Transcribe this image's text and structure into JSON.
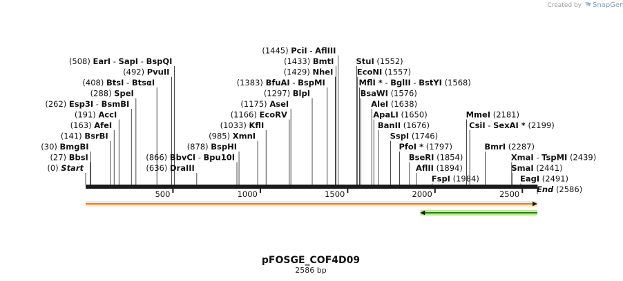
{
  "header": {
    "credit_prefix": "Created by",
    "brand": "SnapGene"
  },
  "plasmid": {
    "name": "pFOSGE_COF4D09",
    "length_label": "2586 bp",
    "length_bp": 2586
  },
  "ruler": {
    "ticks": [
      500,
      1000,
      1500,
      2000,
      2500
    ]
  },
  "features": [
    {
      "name": "feature-orange-forward",
      "start": 1,
      "end": 2586,
      "direction": "forward",
      "color": "#f0a030",
      "halo": "#fde7c8"
    },
    {
      "name": "feature-green-reverse",
      "start": 1916,
      "end": 2586,
      "direction": "reverse",
      "color": "#3a8a20",
      "halo": "#b8ee9a"
    }
  ],
  "sites": [
    {
      "pos": 0,
      "pos_text": "(0)",
      "names": [
        "Start"
      ],
      "side": "left",
      "row": 0,
      "endpoint": true
    },
    {
      "pos": 27,
      "pos_text": "(27)",
      "names": [
        "BbsI"
      ],
      "side": "left",
      "row": 1
    },
    {
      "pos": 30,
      "pos_text": "(30)",
      "names": [
        "BmgBI"
      ],
      "side": "left",
      "row": 2
    },
    {
      "pos": 141,
      "pos_text": "(141)",
      "names": [
        "BsrBI"
      ],
      "side": "left",
      "row": 3
    },
    {
      "pos": 163,
      "pos_text": "(163)",
      "names": [
        "AfeI"
      ],
      "side": "left",
      "row": 4
    },
    {
      "pos": 191,
      "pos_text": "(191)",
      "names": [
        "AccI"
      ],
      "side": "left",
      "row": 5
    },
    {
      "pos": 262,
      "pos_text": "(262)",
      "names": [
        "Esp3I",
        "BsmBI"
      ],
      "side": "left",
      "row": 6
    },
    {
      "pos": 288,
      "pos_text": "(288)",
      "names": [
        "SpeI"
      ],
      "side": "left",
      "row": 7
    },
    {
      "pos": 408,
      "pos_text": "(408)",
      "names": [
        "BtsI",
        "BtsαI"
      ],
      "side": "left",
      "row": 8
    },
    {
      "pos": 492,
      "pos_text": "(492)",
      "names": [
        "PvuII"
      ],
      "side": "left",
      "row": 9
    },
    {
      "pos": 508,
      "pos_text": "(508)",
      "names": [
        "EarI",
        "SapI",
        "BspQI"
      ],
      "side": "left",
      "row": 10
    },
    {
      "pos": 636,
      "pos_text": "(636)",
      "names": [
        "DraIII"
      ],
      "side": "left",
      "row": 0
    },
    {
      "pos": 866,
      "pos_text": "(866)",
      "names": [
        "BbvCI",
        "Bpu10I"
      ],
      "side": "left",
      "row": 1
    },
    {
      "pos": 878,
      "pos_text": "(878)",
      "names": [
        "BspHI"
      ],
      "side": "left",
      "row": 2
    },
    {
      "pos": 985,
      "pos_text": "(985)",
      "names": [
        "XmnI"
      ],
      "side": "left",
      "row": 3
    },
    {
      "pos": 1033,
      "pos_text": "(1033)",
      "names": [
        "KflI"
      ],
      "side": "left",
      "row": 4
    },
    {
      "pos": 1166,
      "pos_text": "(1166)",
      "names": [
        "EcoRV"
      ],
      "side": "left",
      "row": 5
    },
    {
      "pos": 1175,
      "pos_text": "(1175)",
      "names": [
        "AseI"
      ],
      "side": "left",
      "row": 6
    },
    {
      "pos": 1297,
      "pos_text": "(1297)",
      "names": [
        "BlpI"
      ],
      "side": "left",
      "row": 7
    },
    {
      "pos": 1383,
      "pos_text": "(1383)",
      "names": [
        "BfuAI",
        "BspMI"
      ],
      "side": "left",
      "row": 8
    },
    {
      "pos": 1429,
      "pos_text": "(1429)",
      "names": [
        "NheI"
      ],
      "side": "left",
      "row": 9
    },
    {
      "pos": 1433,
      "pos_text": "(1433)",
      "names": [
        "BmtI"
      ],
      "side": "left",
      "row": 10
    },
    {
      "pos": 1445,
      "pos_text": "(1445)",
      "names": [
        "PciI",
        "AflIII"
      ],
      "side": "left",
      "row": 11
    },
    {
      "pos": 1552,
      "pos_text": "(1552)",
      "names": [
        "StuI"
      ],
      "side": "right",
      "row": 10
    },
    {
      "pos": 1557,
      "pos_text": "(1557)",
      "names": [
        "EcoNI"
      ],
      "side": "right",
      "row": 9
    },
    {
      "pos": 1568,
      "pos_text": "(1568)",
      "names": [
        "MflI *",
        "BglII",
        "BstYI"
      ],
      "side": "right",
      "row": 8
    },
    {
      "pos": 1576,
      "pos_text": "(1576)",
      "names": [
        "BsaWI"
      ],
      "side": "right",
      "row": 7
    },
    {
      "pos": 1638,
      "pos_text": "(1638)",
      "names": [
        "AleI"
      ],
      "side": "right",
      "row": 6
    },
    {
      "pos": 1650,
      "pos_text": "(1650)",
      "names": [
        "ApaLI"
      ],
      "side": "right",
      "row": 5
    },
    {
      "pos": 1676,
      "pos_text": "(1676)",
      "names": [
        "BanII"
      ],
      "side": "right",
      "row": 4
    },
    {
      "pos": 1746,
      "pos_text": "(1746)",
      "names": [
        "SspI"
      ],
      "side": "right",
      "row": 3
    },
    {
      "pos": 1797,
      "pos_text": "(1797)",
      "names": [
        "PfoI *"
      ],
      "side": "right",
      "row": 2
    },
    {
      "pos": 1854,
      "pos_text": "(1854)",
      "names": [
        "BseRI"
      ],
      "side": "right",
      "row": 1
    },
    {
      "pos": 1894,
      "pos_text": "(1894)",
      "names": [
        "AflII"
      ],
      "side": "right",
      "row": 0
    },
    {
      "pos": 1984,
      "pos_text": "(1984)",
      "names": [
        "FspI"
      ],
      "side": "right",
      "row": -1
    },
    {
      "pos": 2181,
      "pos_text": "(2181)",
      "names": [
        "MmeI"
      ],
      "side": "right",
      "row": 5
    },
    {
      "pos": 2199,
      "pos_text": "(2199)",
      "names": [
        "CsiI",
        "SexAI *"
      ],
      "side": "right",
      "row": 4
    },
    {
      "pos": 2287,
      "pos_text": "(2287)",
      "names": [
        "BmrI"
      ],
      "side": "right",
      "row": 2
    },
    {
      "pos": 2439,
      "pos_text": "(2439)",
      "names": [
        "XmaI",
        "TspMI"
      ],
      "side": "right",
      "row": 1
    },
    {
      "pos": 2441,
      "pos_text": "(2441)",
      "names": [
        "SmaI"
      ],
      "side": "right",
      "row": 0
    },
    {
      "pos": 2491,
      "pos_text": "(2491)",
      "names": [
        "EagI"
      ],
      "side": "right",
      "row": -1
    },
    {
      "pos": 2586,
      "pos_text": "(2586)",
      "names": [
        "End"
      ],
      "side": "right",
      "row": -2,
      "endpoint": true
    }
  ]
}
